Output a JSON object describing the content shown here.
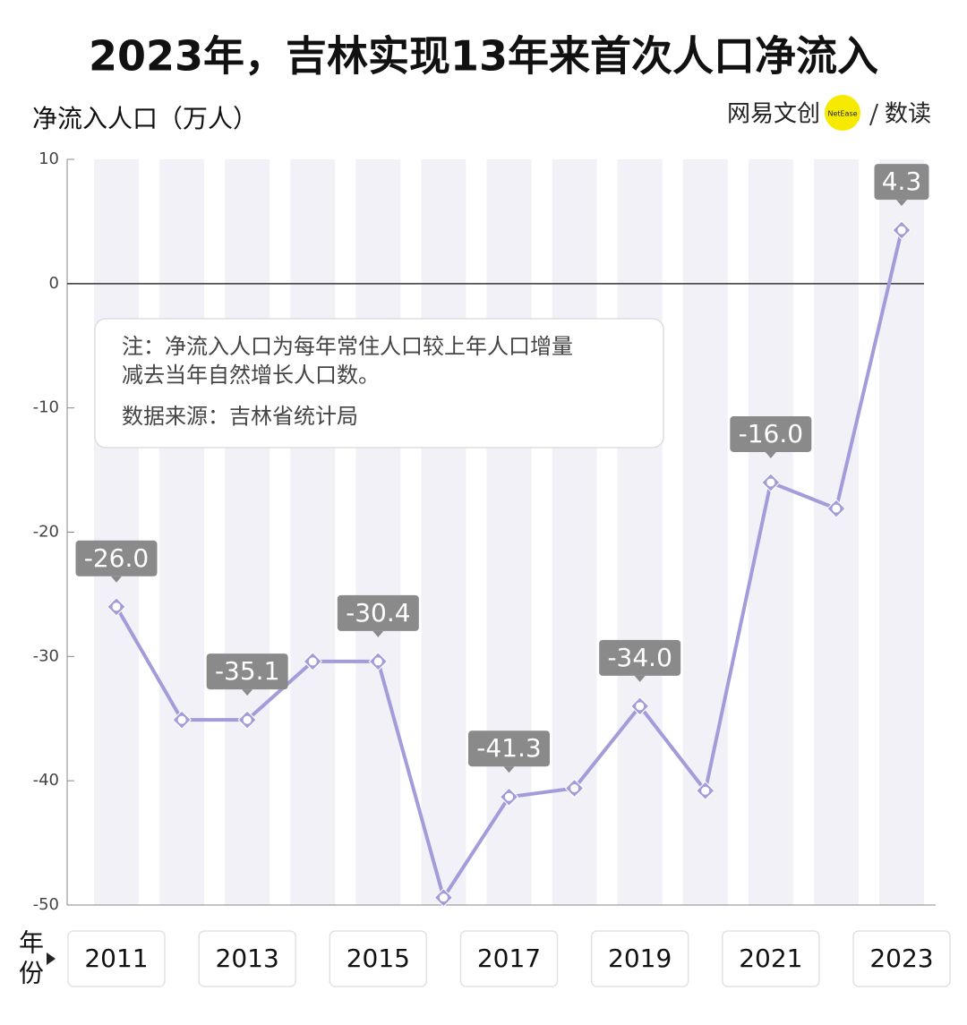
{
  "chart_data": {
    "type": "line",
    "title": "2023年，吉林实现13年来首次人口净流入",
    "y_label": "净流入人口（万人）",
    "x_label": "年份",
    "brand": {
      "name": "网易文创",
      "logo": "NetEase",
      "section": "数读"
    },
    "note": [
      "注：净流入人口为每年常住人口较上年人口增量",
      "减去当年自然增长人口数。"
    ],
    "source": "数据来源：吉林省统计局",
    "categories": [
      "2011",
      null,
      "2013",
      null,
      "2015",
      null,
      "2017",
      null,
      "2019",
      null,
      "2021",
      null,
      "2023"
    ],
    "series": [
      {
        "color": "#a39cdb",
        "values": [
          -26.0,
          -35.1,
          -35.1,
          -30.4,
          -30.4,
          -49.4,
          -41.3,
          -40.6,
          -34.0,
          -40.8,
          -16.0,
          -18.1,
          4.3
        ],
        "value_labels": [
          "-26.0",
          null,
          "-35.1",
          null,
          "-30.4",
          null,
          "-41.3",
          null,
          "-34.0",
          null,
          "-16.0",
          null,
          "4.3"
        ]
      }
    ],
    "ylim": [
      -50,
      10
    ],
    "yticks": [
      10,
      0,
      -10,
      -20,
      -30,
      -40,
      -50
    ],
    "grid": false
  }
}
